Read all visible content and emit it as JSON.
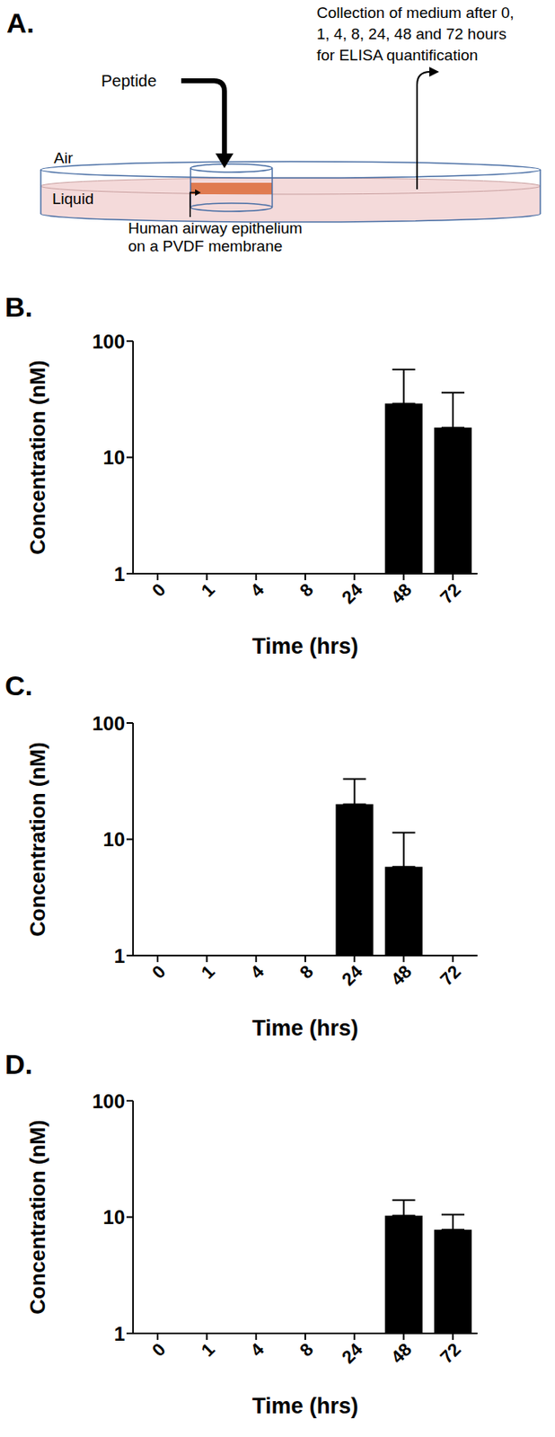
{
  "diagram": {
    "title": "A.",
    "peptide": "Peptide",
    "collection": [
      "Collection of medium after 0,",
      "1, 4, 8, 24, 48 and 72 hours",
      "for ELISA quantification"
    ],
    "air": "Air",
    "liquid": "Liquid",
    "epithelium": [
      "Human airway epithelium",
      "on a PVDF membrane"
    ]
  },
  "chart_data": [
    {
      "type": "bar",
      "title": "B.",
      "xlabel": "Time (hrs)",
      "ylabel": "Concentration (nM)",
      "categories": [
        "0",
        "1",
        "4",
        "8",
        "24",
        "48",
        "72"
      ],
      "values": [
        null,
        null,
        null,
        null,
        null,
        29,
        18
      ],
      "errors": [
        null,
        null,
        null,
        null,
        null,
        28,
        18
      ],
      "color": "#000000",
      "log": "y",
      "ylim": [
        1,
        100
      ],
      "yticks": [
        1,
        10,
        100
      ]
    },
    {
      "type": "bar",
      "title": "C.",
      "xlabel": "Time (hrs)",
      "ylabel": "Concentration (nM)",
      "categories": [
        "0",
        "1",
        "4",
        "8",
        "24",
        "48",
        "72"
      ],
      "values": [
        null,
        null,
        null,
        null,
        20,
        5.8,
        null
      ],
      "errors": [
        null,
        null,
        null,
        null,
        13,
        5.6,
        null
      ],
      "color": "#000000",
      "log": "y",
      "ylim": [
        1,
        100
      ],
      "yticks": [
        1,
        10,
        100
      ]
    },
    {
      "type": "bar",
      "title": "D.",
      "xlabel": "Time (hrs)",
      "ylabel": "Concentration (nM)",
      "categories": [
        "0",
        "1",
        "4",
        "8",
        "24",
        "48",
        "72"
      ],
      "values": [
        null,
        null,
        null,
        null,
        null,
        10.3,
        7.8
      ],
      "errors": [
        null,
        null,
        null,
        null,
        null,
        3.7,
        2.7
      ],
      "color": "#000000",
      "log": "y",
      "ylim": [
        1,
        100
      ],
      "yticks": [
        1,
        10,
        100
      ]
    }
  ]
}
